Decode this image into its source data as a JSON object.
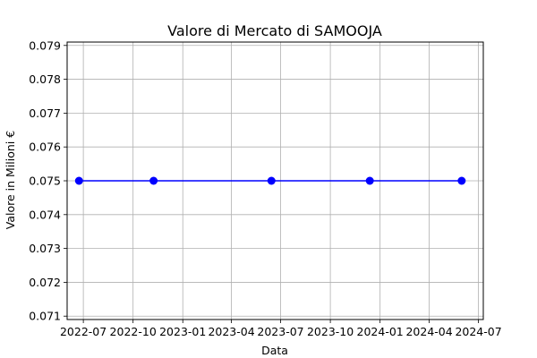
{
  "chart_data": {
    "type": "line",
    "title": "Valore di Mercato di SAMOOJA",
    "xlabel": "Data",
    "ylabel": "Valore in Milioni €",
    "x_ticks": [
      "2022-07",
      "2022-10",
      "2023-01",
      "2023-04",
      "2023-07",
      "2023-10",
      "2024-01",
      "2024-04",
      "2024-07"
    ],
    "y_ticks": [
      "0.071",
      "0.072",
      "0.073",
      "0.074",
      "0.075",
      "0.076",
      "0.077",
      "0.078",
      "0.079"
    ],
    "xlim": [
      "2022-06-01",
      "2024-07-10"
    ],
    "ylim": [
      0.0709,
      0.0791
    ],
    "grid": true,
    "series": [
      {
        "color": "#0000ff",
        "marker": "circle",
        "x": [
          "2022-06-23",
          "2022-11-08",
          "2023-06-14",
          "2023-12-13",
          "2024-05-31"
        ],
        "y": [
          0.075,
          0.075,
          0.075,
          0.075,
          0.075
        ]
      }
    ]
  }
}
